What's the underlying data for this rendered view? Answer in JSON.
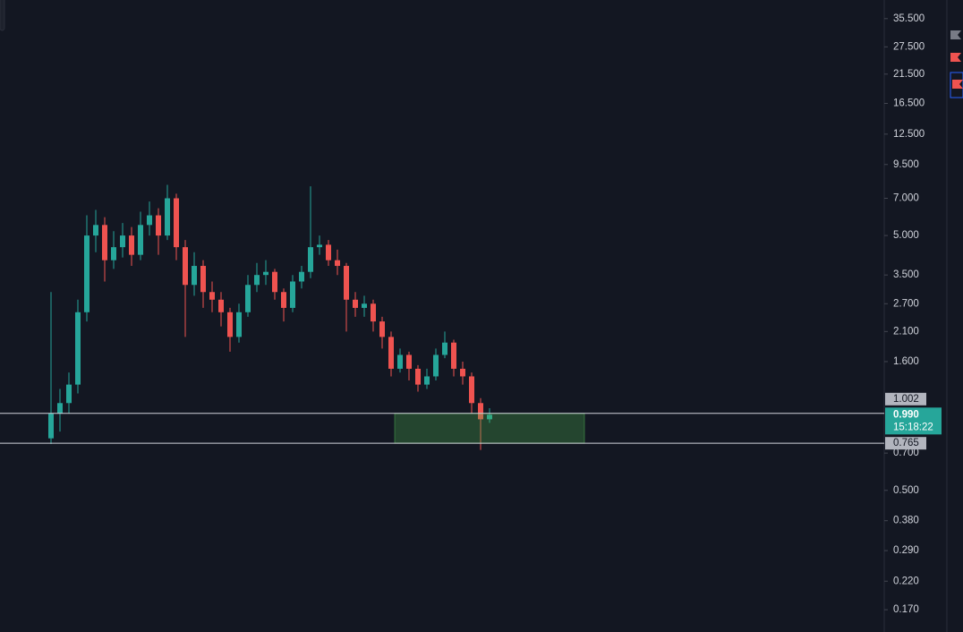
{
  "chart_data": {
    "type": "candlestick",
    "log_scale": true,
    "up_color": "#26a69a",
    "down_color": "#ef5350",
    "ylim": [
      0.139,
      42
    ],
    "yticks": [
      {
        "value": 35.5,
        "label": "35.500"
      },
      {
        "value": 27.5,
        "label": "27.500"
      },
      {
        "value": 21.5,
        "label": "21.500"
      },
      {
        "value": 16.5,
        "label": "16.500"
      },
      {
        "value": 12.5,
        "label": "12.500"
      },
      {
        "value": 9.5,
        "label": "9.500"
      },
      {
        "value": 7,
        "label": "7.000"
      },
      {
        "value": 5,
        "label": "5.000"
      },
      {
        "value": 3.5,
        "label": "3.500"
      },
      {
        "value": 2.7,
        "label": "2.700"
      },
      {
        "value": 2.1,
        "label": "2.100"
      },
      {
        "value": 1.6,
        "label": "1.600"
      },
      {
        "value": 0.7,
        "label": "0.700"
      },
      {
        "value": 0.5,
        "label": "0.500"
      },
      {
        "value": 0.38,
        "label": "0.380"
      },
      {
        "value": 0.29,
        "label": "0.290"
      },
      {
        "value": 0.22,
        "label": "0.220"
      },
      {
        "value": 0.17,
        "label": "0.170"
      }
    ],
    "open": [
      0.8,
      1.0,
      1.1,
      1.3,
      2.5,
      5.0,
      5.5,
      4.0,
      4.5,
      5.0,
      4.2,
      5.5,
      6.0,
      5.0,
      7.0,
      4.5,
      3.2,
      3.8,
      3.0,
      2.8,
      2.5,
      2.0,
      2.5,
      3.2,
      3.5,
      3.6,
      3.0,
      2.6,
      3.3,
      3.6,
      4.5,
      4.6,
      4.0,
      3.8,
      2.8,
      2.6,
      2.7,
      2.3,
      2.0,
      1.5,
      1.7,
      1.5,
      1.3,
      1.4,
      1.7,
      1.9,
      1.5,
      1.4,
      1.1,
      0.95
    ],
    "high": [
      3.0,
      1.25,
      1.45,
      2.8,
      6.0,
      6.3,
      5.9,
      5.2,
      5.6,
      5.4,
      6.2,
      6.8,
      6.4,
      7.9,
      7.3,
      4.8,
      4.3,
      4.0,
      3.3,
      3.0,
      2.6,
      2.7,
      3.5,
      3.9,
      4.0,
      3.7,
      3.1,
      3.5,
      3.8,
      7.8,
      5.0,
      4.8,
      4.4,
      3.9,
      3.0,
      2.9,
      2.8,
      2.4,
      2.1,
      1.8,
      1.75,
      1.55,
      1.5,
      1.8,
      2.1,
      1.95,
      1.6,
      1.45,
      1.15,
      1.05
    ],
    "low": [
      0.76,
      0.85,
      1.0,
      1.2,
      2.3,
      4.3,
      3.3,
      3.7,
      4.1,
      3.8,
      4.0,
      5.0,
      4.2,
      4.8,
      4.0,
      2.0,
      2.9,
      2.6,
      2.5,
      2.2,
      1.75,
      1.9,
      2.4,
      3.0,
      3.2,
      2.8,
      2.3,
      2.5,
      3.1,
      3.4,
      4.2,
      3.8,
      3.5,
      2.1,
      2.4,
      2.4,
      2.1,
      1.8,
      1.4,
      1.45,
      1.35,
      1.22,
      1.25,
      1.35,
      1.65,
      1.4,
      1.3,
      1.0,
      0.72,
      0.92
    ],
    "close": [
      1.0,
      1.1,
      1.3,
      2.5,
      5.0,
      5.5,
      4.0,
      4.5,
      5.0,
      4.2,
      5.5,
      6.0,
      5.0,
      7.0,
      4.5,
      3.2,
      3.8,
      3.0,
      2.8,
      2.5,
      2.0,
      2.5,
      3.2,
      3.5,
      3.6,
      3.0,
      2.6,
      3.3,
      3.6,
      4.5,
      4.6,
      4.0,
      3.8,
      2.8,
      2.6,
      2.7,
      2.3,
      2.0,
      1.5,
      1.7,
      1.5,
      1.3,
      1.4,
      1.7,
      1.9,
      1.5,
      1.4,
      1.1,
      0.95,
      0.99
    ],
    "horizontal_lines": [
      {
        "value": 1.002,
        "label": "1.002"
      },
      {
        "value": 0.765,
        "label": "0.765"
      }
    ],
    "last_price": {
      "value": 0.99,
      "label": "0.990"
    },
    "countdown": "15:18:22"
  }
}
